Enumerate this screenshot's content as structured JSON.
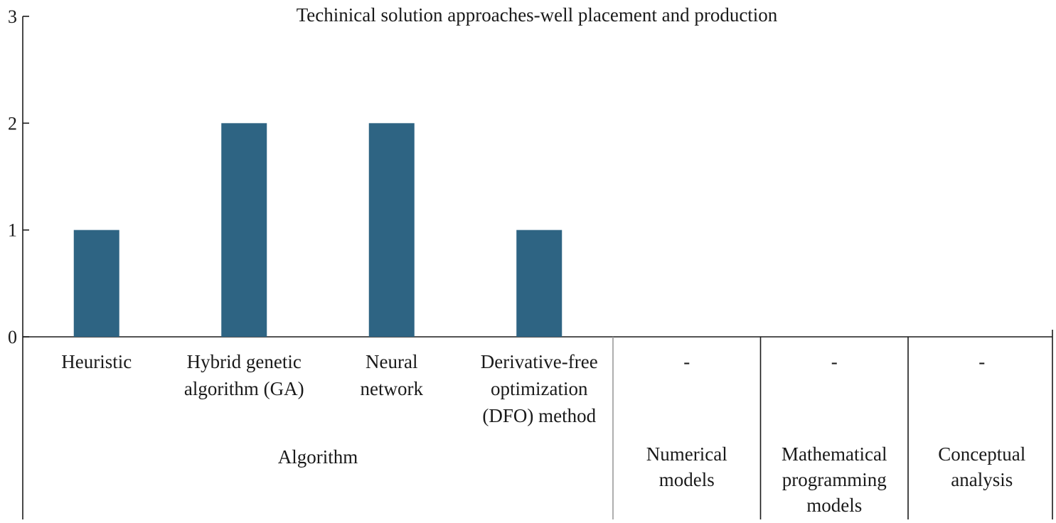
{
  "chart_data": {
    "type": "bar",
    "title": "Techinical solution approaches-well placement and production",
    "xlabel": "",
    "ylabel": "",
    "ylim": [
      0,
      3
    ],
    "yticks": [
      "0",
      "1",
      "2",
      "3"
    ],
    "grid": false,
    "bar_color": "#2e6483",
    "categories": [
      [
        "Heuristic"
      ],
      [
        "Hybrid genetic",
        "algorithm (GA)"
      ],
      [
        "Neural",
        "network"
      ],
      [
        "Derivative-free",
        "optimization",
        "(DFO) method"
      ],
      [
        "-"
      ],
      [
        "-"
      ],
      [
        "-"
      ]
    ],
    "values": [
      1,
      2,
      2,
      1,
      0,
      0,
      0
    ],
    "groups": [
      {
        "label": [
          "Algorithm"
        ],
        "category_count": 4
      },
      {
        "label": [
          "Numerical",
          "models"
        ],
        "category_count": 1
      },
      {
        "label": [
          "Mathematical",
          "programming",
          "models"
        ],
        "category_count": 1
      },
      {
        "label": [
          "Conceptual",
          "analysis"
        ],
        "category_count": 1
      }
    ]
  }
}
